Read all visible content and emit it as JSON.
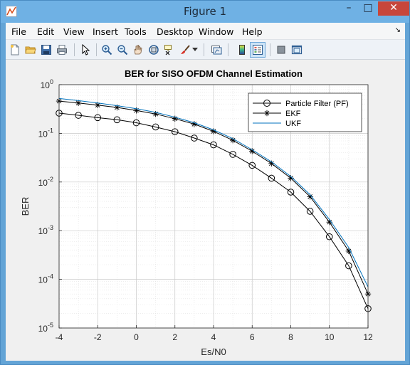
{
  "window": {
    "title": "Figure 1",
    "controls": {
      "minimize": "–",
      "maximize": "□",
      "close": "✕"
    }
  },
  "menubar": {
    "items": [
      "File",
      "Edit",
      "View",
      "Insert",
      "Tools",
      "Desktop",
      "Window",
      "Help"
    ],
    "overflow_arrow": "↘"
  },
  "toolbar": {
    "tools": [
      "new-figure",
      "open-file",
      "save",
      "print",
      "edit-plot-pointer",
      "zoom-in",
      "zoom-out",
      "pan",
      "rotate-3d",
      "data-cursor",
      "brush",
      "brush-dropdown",
      "link-plot",
      "insert-colorbar",
      "insert-legend",
      "hide-plot-tools",
      "show-plot-tools"
    ],
    "active_tool": "insert-legend"
  },
  "colors": {
    "pf": "#000000",
    "ekf": "#000000",
    "ukf": "#0072bd",
    "grid": "#c8c8c8",
    "plot_background": "#ffffff",
    "figure_background": "#f0f0f0"
  },
  "chart_data": {
    "type": "line",
    "title": "BER for SISO OFDM Channel Estimation",
    "xlabel": "Es/N0",
    "ylabel": "BER",
    "yscale": "log",
    "xlim": [
      -4,
      12
    ],
    "ylim": [
      1e-05,
      1
    ],
    "xticks": [
      "-4",
      "-2",
      "0",
      "2",
      "4",
      "6",
      "8",
      "10",
      "12"
    ],
    "yticks": [
      {
        "base": "10",
        "exp": "-5",
        "value": 1e-05
      },
      {
        "base": "10",
        "exp": "-4",
        "value": 0.0001
      },
      {
        "base": "10",
        "exp": "-3",
        "value": 0.001
      },
      {
        "base": "10",
        "exp": "-2",
        "value": 0.01
      },
      {
        "base": "10",
        "exp": "-1",
        "value": 0.1
      },
      {
        "base": "10",
        "exp": "0",
        "value": 1
      }
    ],
    "grid": true,
    "minor_grid": true,
    "legend_location": "top-right",
    "x": [
      -4,
      -3,
      -2,
      -1,
      0,
      1,
      2,
      3,
      4,
      5,
      6,
      7,
      8,
      9,
      10,
      11,
      12
    ],
    "series": [
      {
        "name": "Particle Filter (PF)",
        "marker": "circle",
        "color": "#000000",
        "values": [
          0.26,
          0.235,
          0.21,
          0.19,
          0.165,
          0.135,
          0.108,
          0.08,
          0.058,
          0.037,
          0.022,
          0.012,
          0.0062,
          0.0025,
          0.00075,
          0.00019,
          2.5e-05
        ]
      },
      {
        "name": "EKF",
        "marker": "star",
        "color": "#000000",
        "values": [
          0.46,
          0.42,
          0.38,
          0.34,
          0.295,
          0.25,
          0.2,
          0.155,
          0.11,
          0.072,
          0.043,
          0.024,
          0.012,
          0.005,
          0.0015,
          0.00038,
          5e-05
        ]
      },
      {
        "name": "UKF",
        "marker": "none",
        "color": "#0072bd",
        "values": [
          0.52,
          0.47,
          0.42,
          0.37,
          0.32,
          0.27,
          0.215,
          0.165,
          0.118,
          0.078,
          0.046,
          0.026,
          0.013,
          0.0055,
          0.0017,
          0.00045,
          7e-05
        ]
      }
    ]
  }
}
